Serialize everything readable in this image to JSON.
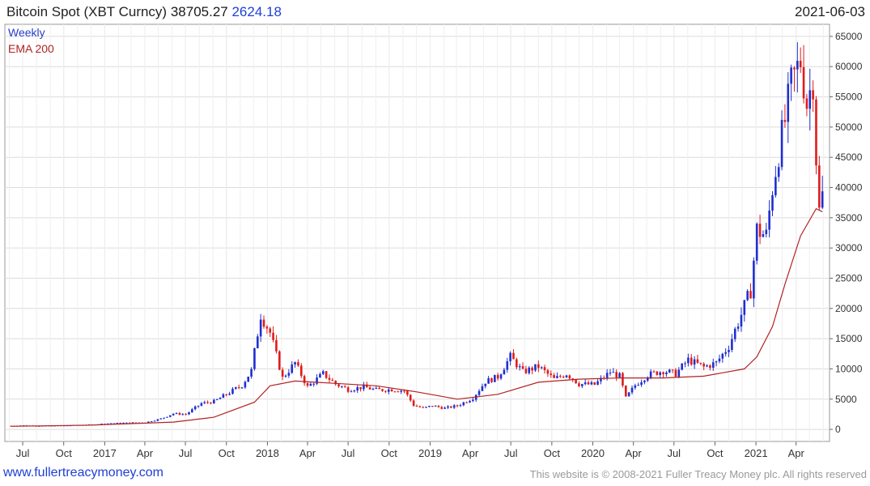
{
  "header": {
    "title": "Bitcoin Spot (XBT Curncy)",
    "price": "38705.27",
    "change": "2624.18",
    "date": "2021-06-03"
  },
  "legend": {
    "weekly": "Weekly",
    "ema": "EMA 200"
  },
  "footer": {
    "site": "www.fullertreacymoney.com",
    "copyright": "This website is © 2008-2021 Fuller Treacy Money plc. All rights reserved"
  },
  "colors": {
    "up": "#1f2fd0",
    "down": "#e01b1b",
    "ema": "#b22222",
    "grid": "#dcdcdc"
  },
  "chart_data": {
    "type": "candlestick",
    "y_ticks": [
      0,
      5000,
      10000,
      15000,
      20000,
      25000,
      30000,
      35000,
      40000,
      45000,
      50000,
      55000,
      60000,
      65000
    ],
    "x_tick_labels": [
      "Jul",
      "Oct",
      "2017",
      "Apr",
      "Jul",
      "Oct",
      "2018",
      "Apr",
      "Jul",
      "Oct",
      "2019",
      "Apr",
      "Jul",
      "Oct",
      "2020",
      "Apr",
      "Jul",
      "Oct",
      "2021",
      "Apr"
    ],
    "ylim": [
      -2000,
      67000
    ],
    "grid": true,
    "series": [
      {
        "name": "Weekly",
        "description": "weekly OHLC closes",
        "dates": [
          "2016-06-05",
          "2016-07-03",
          "2016-08-07",
          "2016-09-04",
          "2016-10-02",
          "2016-11-06",
          "2016-12-04",
          "2017-01-01",
          "2017-02-05",
          "2017-03-05",
          "2017-04-02",
          "2017-05-07",
          "2017-06-04",
          "2017-07-02",
          "2017-08-06",
          "2017-09-03",
          "2017-10-01",
          "2017-11-05",
          "2017-11-26",
          "2017-12-17",
          "2018-01-07",
          "2018-02-04",
          "2018-03-04",
          "2018-04-01",
          "2018-05-06",
          "2018-06-03",
          "2018-07-01",
          "2018-08-05",
          "2018-09-02",
          "2018-10-07",
          "2018-11-04",
          "2018-11-25",
          "2018-12-16",
          "2019-01-06",
          "2019-02-03",
          "2019-03-03",
          "2019-04-07",
          "2019-05-05",
          "2019-06-02",
          "2019-06-30",
          "2019-07-28",
          "2019-09-01",
          "2019-10-06",
          "2019-11-03",
          "2019-12-01",
          "2020-01-05",
          "2020-02-09",
          "2020-03-01",
          "2020-03-15",
          "2020-04-05",
          "2020-05-03",
          "2020-06-07",
          "2020-07-05",
          "2020-08-02",
          "2020-09-06",
          "2020-10-04",
          "2020-11-01",
          "2020-11-29",
          "2020-12-20",
          "2021-01-03",
          "2021-01-24",
          "2021-02-07",
          "2021-02-21",
          "2021-03-07",
          "2021-03-21",
          "2021-04-11",
          "2021-04-25",
          "2021-05-09",
          "2021-05-16",
          "2021-05-23",
          "2021-05-30"
        ],
        "close": [
          600,
          650,
          580,
          600,
          640,
          720,
          770,
          960,
          1050,
          1100,
          1150,
          1750,
          2600,
          2500,
          4300,
          4600,
          5800,
          7300,
          9700,
          19000,
          16000,
          8500,
          11000,
          7000,
          9200,
          7500,
          6600,
          7000,
          6500,
          6600,
          6400,
          4000,
          3500,
          3900,
          3500,
          3900,
          5200,
          7900,
          8700,
          12000,
          9500,
          10400,
          8300,
          9200,
          7500,
          7400,
          9500,
          8800,
          5200,
          7300,
          9000,
          9700,
          9200,
          11500,
          10300,
          11000,
          13800,
          19000,
          23000,
          33000,
          32000,
          40000,
          46000,
          51000,
          57000,
          61000,
          54000,
          58000,
          45000,
          36000,
          38705
        ]
      },
      {
        "name": "EMA 200",
        "description": "200-week exponential moving average",
        "dates": [
          "2016-06-05",
          "2016-12-04",
          "2017-06-04",
          "2017-09-03",
          "2017-12-03",
          "2018-01-07",
          "2018-03-04",
          "2018-06-03",
          "2018-09-02",
          "2018-12-02",
          "2019-03-03",
          "2019-06-02",
          "2019-09-01",
          "2019-12-01",
          "2020-03-01",
          "2020-06-07",
          "2020-09-06",
          "2020-12-06",
          "2021-01-03",
          "2021-02-07",
          "2021-03-07",
          "2021-04-11",
          "2021-05-16",
          "2021-05-30"
        ],
        "values": [
          500,
          700,
          1200,
          2000,
          4500,
          7200,
          8000,
          7600,
          7200,
          6200,
          5000,
          5800,
          7800,
          8300,
          8500,
          8500,
          8800,
          10000,
          12000,
          17000,
          24000,
          32000,
          36500,
          36000
        ]
      }
    ]
  }
}
